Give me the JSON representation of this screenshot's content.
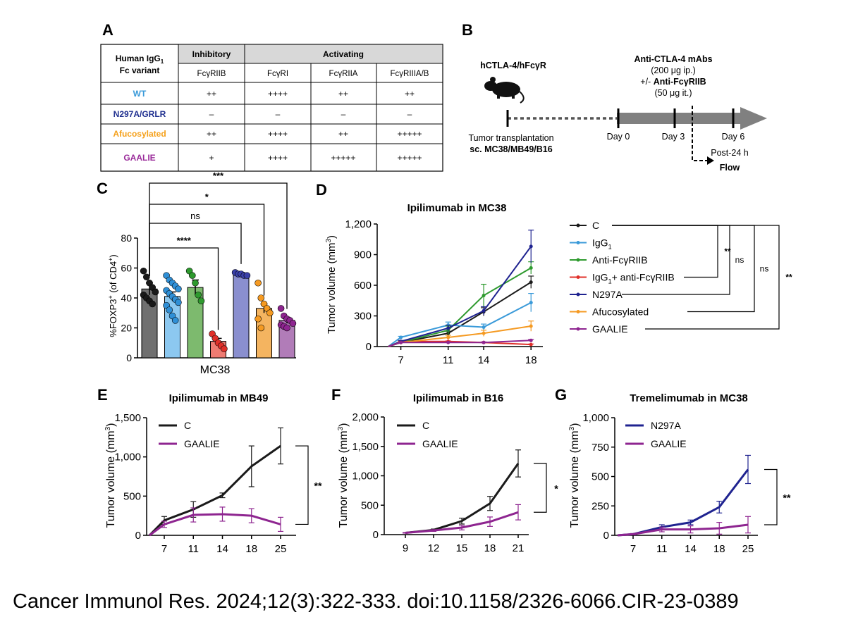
{
  "panelA": {
    "letter": "A",
    "hdr_line1": "Human IgG",
    "hdr_sub": "1",
    "hdr_line2": "Fc variant",
    "group_inhibitory": "Inhibitory",
    "group_activating": "Activating",
    "receptors": [
      "FcγRIIB",
      "FcγRI",
      "FcγRIIA",
      "FcγRIIIA/B"
    ],
    "rows": [
      {
        "name": "WT",
        "color": "#3a9ad9",
        "values": [
          "++",
          "++++",
          "++",
          "++"
        ]
      },
      {
        "name": "N297A/GRLR",
        "color": "#1f2f8f",
        "values": [
          "–",
          "–",
          "–",
          "–"
        ]
      },
      {
        "name": "Afucosylated",
        "color": "#f5a01a",
        "values": [
          "++",
          "++++",
          "++",
          "+++++"
        ]
      },
      {
        "name": "GAALIE",
        "color": "#9b2d9b",
        "values": [
          "+",
          "++++",
          "+++++",
          "+++++"
        ]
      }
    ]
  },
  "panelB": {
    "letter": "B",
    "mouse_label": "hCTLA-4/hFcγR",
    "treat_line1": "Anti-CTLA-4 mAbs",
    "treat_line2": "(200 μg ip.)",
    "treat_line3_prefix": "+/- ",
    "treat_line3_bold": "Anti-FcγRIIB",
    "treat_line4": "(50 μg it.)",
    "day0": "Day 0",
    "day3": "Day 3",
    "day6": "Day 6",
    "transplant_line1": "Tumor transplantation",
    "transplant_line2": "sc. MC38/MB49/B16",
    "post_line1": "Post-24 h",
    "post_line2": "Flow"
  },
  "colors": {
    "C": "#1a1a1a",
    "IgG1": "#3a9ad9",
    "AntiFcgRIIB": "#2e9a2e",
    "IgG1AntiFcgRIIB": "#e0302a",
    "N297A": "#1f2390",
    "Afucosylated": "#f59a22",
    "GAALIE": "#8e2590"
  },
  "chart_data": [
    {
      "panel": "C",
      "type": "bar",
      "title": "",
      "xlabel": "MC38",
      "ylabel_main": "%FOXP3",
      "ylabel_sup1": "+",
      "ylabel_mid": " (of CD4",
      "ylabel_sup2": "+",
      "ylabel_end": ")",
      "ylim": [
        0,
        80
      ],
      "yticks": [
        "0",
        "20",
        "40",
        "60",
        "80"
      ],
      "categories": [
        "C",
        "IgG1",
        "Anti-FcγRIIB",
        "IgG1+ anti-FcγRIIB",
        "N297A",
        "Afucosylated",
        "GAALIE"
      ],
      "values": [
        46,
        41,
        47,
        11,
        56,
        33,
        25
      ],
      "errors": [
        4,
        3,
        5,
        2,
        1,
        3,
        2
      ],
      "bar_colors": [
        "#707070",
        "#8cc8f0",
        "#7dba6e",
        "#ee7b72",
        "#8a8fcf",
        "#f4b460",
        "#b17cb8"
      ],
      "dot_colors": [
        "#1a1a1a",
        "#2f8fd6",
        "#2e9a2e",
        "#e0302a",
        "#3a40a8",
        "#f59a22",
        "#8e2590"
      ],
      "points": [
        [
          58,
          54,
          50,
          47,
          44,
          42,
          40,
          38,
          36
        ],
        [
          55,
          52,
          50,
          48,
          46,
          45,
          43,
          41,
          39,
          37,
          35,
          32,
          28,
          25
        ],
        [
          58,
          55,
          50,
          42,
          38
        ],
        [
          16,
          13,
          10,
          8,
          6
        ],
        [
          57,
          56,
          56,
          55,
          55
        ],
        [
          50,
          40,
          36,
          33,
          30,
          26,
          20
        ],
        [
          33,
          28,
          26,
          25,
          23,
          22,
          21,
          20
        ]
      ],
      "brackets": [
        {
          "label": "****",
          "from": 0,
          "to": 3
        },
        {
          "label": "ns",
          "from": 0,
          "to": 4
        },
        {
          "label": "*",
          "from": 0,
          "to": 5
        },
        {
          "label": "***",
          "from": 0,
          "to": 6
        }
      ]
    },
    {
      "panel": "D",
      "type": "line",
      "title": "Ipilimumab in MC38",
      "xlabel": "",
      "ylabel": "Tumor volume (mm",
      "ylabel_sup": "3",
      "ylabel_end": ")",
      "x": [
        7,
        11,
        14,
        18
      ],
      "xlim": [
        5,
        19
      ],
      "ylim": [
        0,
        1200
      ],
      "yticks": [
        "0",
        "300",
        "600",
        "900",
        "1,200"
      ],
      "series": [
        {
          "name": "C",
          "label": "C",
          "sub": "",
          "label_after": "",
          "color": "#1a1a1a",
          "values": [
            40,
            130,
            340,
            630
          ],
          "err": [
            5,
            20,
            40,
            60
          ]
        },
        {
          "name": "IgG1",
          "label": "IgG",
          "sub": "1",
          "label_after": "",
          "color": "#3a9ad9",
          "values": [
            90,
            210,
            190,
            430
          ],
          "err": [
            10,
            30,
            30,
            90
          ]
        },
        {
          "name": "Anti-FcγRIIB",
          "label": "Anti-FcγRIIB",
          "sub": "",
          "label_after": "",
          "color": "#2e9a2e",
          "values": [
            40,
            160,
            500,
            770
          ],
          "err": [
            10,
            40,
            110,
            60
          ]
        },
        {
          "name": "IgG1+ anti-FcγRIIB",
          "label": "IgG",
          "sub": "1",
          "label_after": "+ anti-FcγRIIB",
          "color": "#e0302a",
          "values": [
            50,
            50,
            40,
            20
          ],
          "err": [
            5,
            5,
            5,
            5
          ]
        },
        {
          "name": "N297A",
          "label": "N297A",
          "sub": "",
          "label_after": "",
          "color": "#1f2390",
          "values": [
            50,
            180,
            350,
            980
          ],
          "err": [
            10,
            30,
            40,
            160
          ]
        },
        {
          "name": "Afucosylated",
          "label": "Afucosylated",
          "sub": "",
          "label_after": "",
          "color": "#f59a22",
          "values": [
            40,
            90,
            130,
            200
          ],
          "err": [
            5,
            20,
            30,
            50
          ]
        },
        {
          "name": "GAALIE",
          "label": "GAALIE",
          "sub": "",
          "label_after": "",
          "color": "#8e2590",
          "values": [
            40,
            40,
            40,
            60
          ],
          "err": [
            5,
            5,
            5,
            10
          ]
        }
      ],
      "sig": [
        {
          "label": "**",
          "from": 0,
          "to": 3
        },
        {
          "label": "ns",
          "from": 0,
          "to": 4
        },
        {
          "label": "ns",
          "from": 0,
          "to": 5
        },
        {
          "label": "**",
          "from": 0,
          "to": 6
        }
      ]
    },
    {
      "panel": "E",
      "type": "line",
      "title": "Ipilimumab in MB49",
      "ylabel": "Tumor volume (mm",
      "ylabel_sup": "3",
      "ylabel_end": ")",
      "x": [
        7,
        11,
        14,
        18,
        25
      ],
      "xticks": [
        "7",
        "11",
        "14",
        "18",
        "25"
      ],
      "ylim": [
        0,
        1500
      ],
      "yticks": [
        "0",
        "500",
        "1,000",
        "1,500"
      ],
      "start": 0,
      "series": [
        {
          "name": "C",
          "color": "#1a1a1a",
          "values": [
            190,
            330,
            510,
            880,
            1140
          ],
          "err": [
            50,
            100,
            30,
            260,
            230
          ]
        },
        {
          "name": "GAALIE",
          "color": "#8e2590",
          "values": [
            140,
            260,
            270,
            250,
            140
          ],
          "err": [
            40,
            90,
            90,
            90,
            90
          ]
        }
      ],
      "sig": "**"
    },
    {
      "panel": "F",
      "type": "line",
      "title": "Ipilimumab in B16",
      "ylabel": "Tumor volume (mm",
      "ylabel_sup": "3",
      "ylabel_end": ")",
      "x": [
        9,
        12,
        15,
        18,
        21
      ],
      "xticks": [
        "9",
        "12",
        "15",
        "18",
        "21"
      ],
      "ylim": [
        0,
        2000
      ],
      "yticks": [
        "0",
        "500",
        "1,000",
        "1,500",
        "2,000"
      ],
      "start": null,
      "series": [
        {
          "name": "C",
          "color": "#1a1a1a",
          "values": [
            30,
            80,
            230,
            530,
            1210
          ],
          "err": [
            5,
            15,
            50,
            120,
            230
          ]
        },
        {
          "name": "GAALIE",
          "color": "#8e2590",
          "values": [
            30,
            70,
            120,
            220,
            380
          ],
          "err": [
            5,
            15,
            40,
            80,
            130
          ]
        }
      ],
      "sig": "*"
    },
    {
      "panel": "G",
      "type": "line",
      "title": "Tremelimumab in MC38",
      "ylabel": "Tumor volume (mm",
      "ylabel_sup": "3",
      "ylabel_end": ")",
      "x": [
        7,
        11,
        14,
        18,
        25
      ],
      "xticks": [
        "7",
        "11",
        "14",
        "18",
        "25"
      ],
      "ylim": [
        0,
        1000
      ],
      "yticks": [
        "0",
        "250",
        "500",
        "750",
        "1,000"
      ],
      "start": 0,
      "series": [
        {
          "name": "N297A",
          "color": "#1f2390",
          "values": [
            10,
            70,
            110,
            240,
            560
          ],
          "err": [
            5,
            20,
            20,
            50,
            120
          ]
        },
        {
          "name": "GAALIE",
          "color": "#8e2590",
          "values": [
            10,
            50,
            50,
            60,
            90
          ],
          "err": [
            5,
            20,
            30,
            50,
            70
          ]
        }
      ],
      "sig": "**"
    }
  ],
  "citation": "Cancer Immunol Res. 2024;12(3):322-333. doi:10.1158/2326-6066.CIR-23-0389"
}
